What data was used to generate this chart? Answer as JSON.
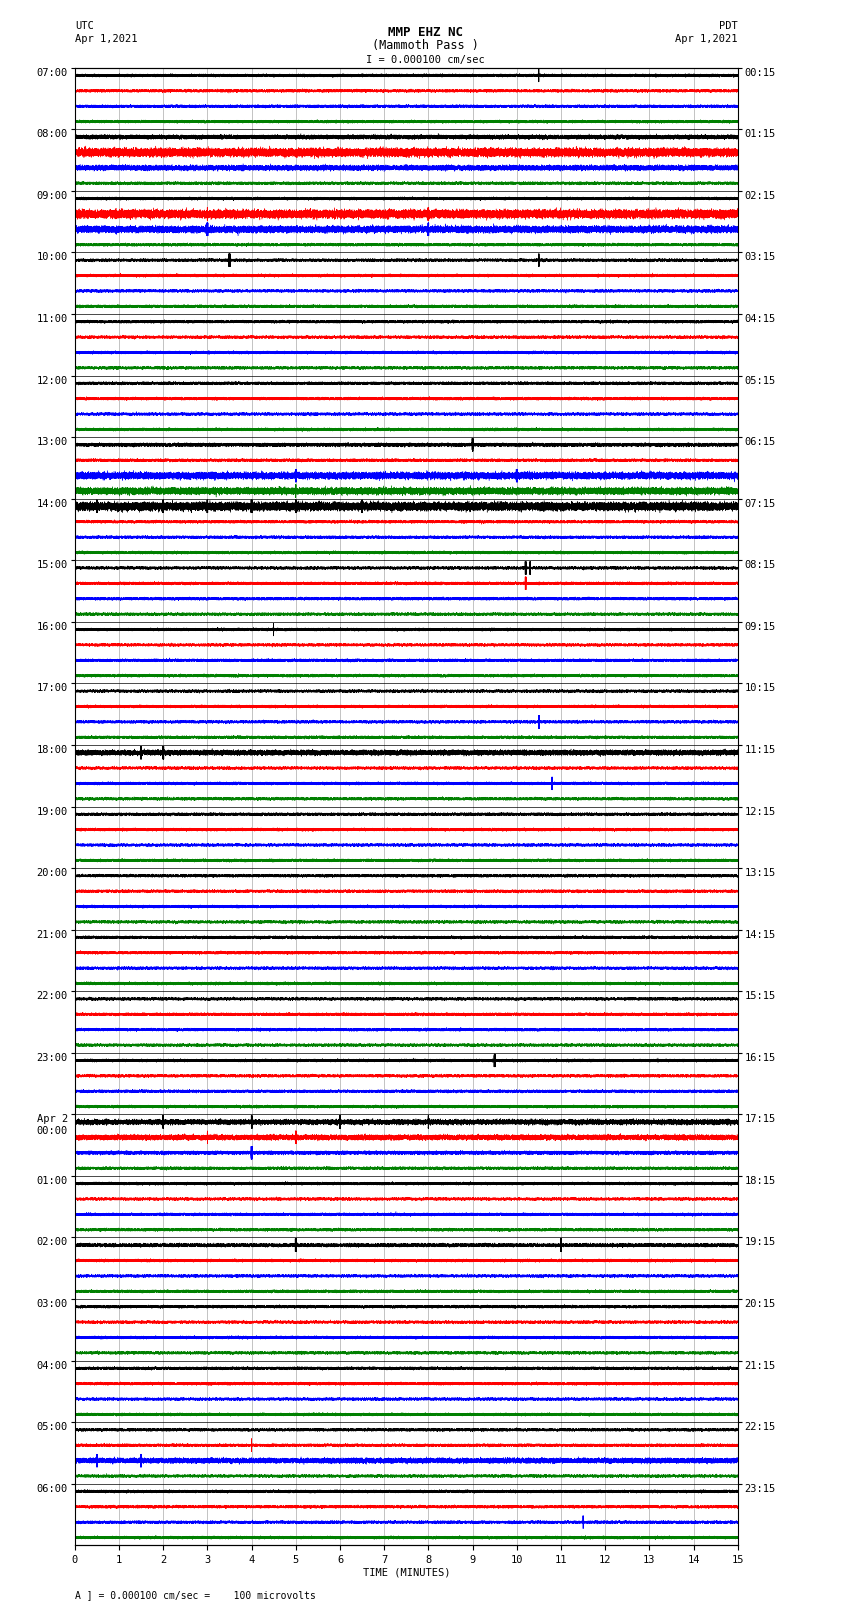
{
  "title_line1": "MMP EHZ NC",
  "title_line2": "(Mammoth Pass )",
  "scale_text": "I = 0.000100 cm/sec",
  "left_header_line1": "UTC",
  "left_header_line2": "Apr 1,2021",
  "right_header_line1": "PDT",
  "right_header_line2": "Apr 1,2021",
  "xlabel": "TIME (MINUTES)",
  "footer": "A ] = 0.000100 cm/sec =    100 microvolts",
  "left_times": [
    "07:00",
    "08:00",
    "09:00",
    "10:00",
    "11:00",
    "12:00",
    "13:00",
    "14:00",
    "15:00",
    "16:00",
    "17:00",
    "18:00",
    "19:00",
    "20:00",
    "21:00",
    "22:00",
    "23:00",
    "Apr 2\n00:00",
    "01:00",
    "02:00",
    "03:00",
    "04:00",
    "05:00",
    "06:00"
  ],
  "right_times": [
    "00:15",
    "01:15",
    "02:15",
    "03:15",
    "04:15",
    "05:15",
    "06:15",
    "07:15",
    "08:15",
    "09:15",
    "10:15",
    "11:15",
    "12:15",
    "13:15",
    "14:15",
    "15:15",
    "16:15",
    "17:15",
    "18:15",
    "19:15",
    "20:15",
    "21:15",
    "22:15",
    "23:15"
  ],
  "colors": [
    "black",
    "red",
    "blue",
    "green"
  ],
  "n_rows": 24,
  "traces_per_row": 4,
  "minutes": 15,
  "sample_rate": 100,
  "fig_width": 8.5,
  "fig_height": 16.13,
  "bg_color": "white",
  "grid_color": "#888888",
  "trace_linewidth": 0.3,
  "title_fontsize": 9,
  "label_fontsize": 7.5,
  "tick_fontsize": 7.5
}
